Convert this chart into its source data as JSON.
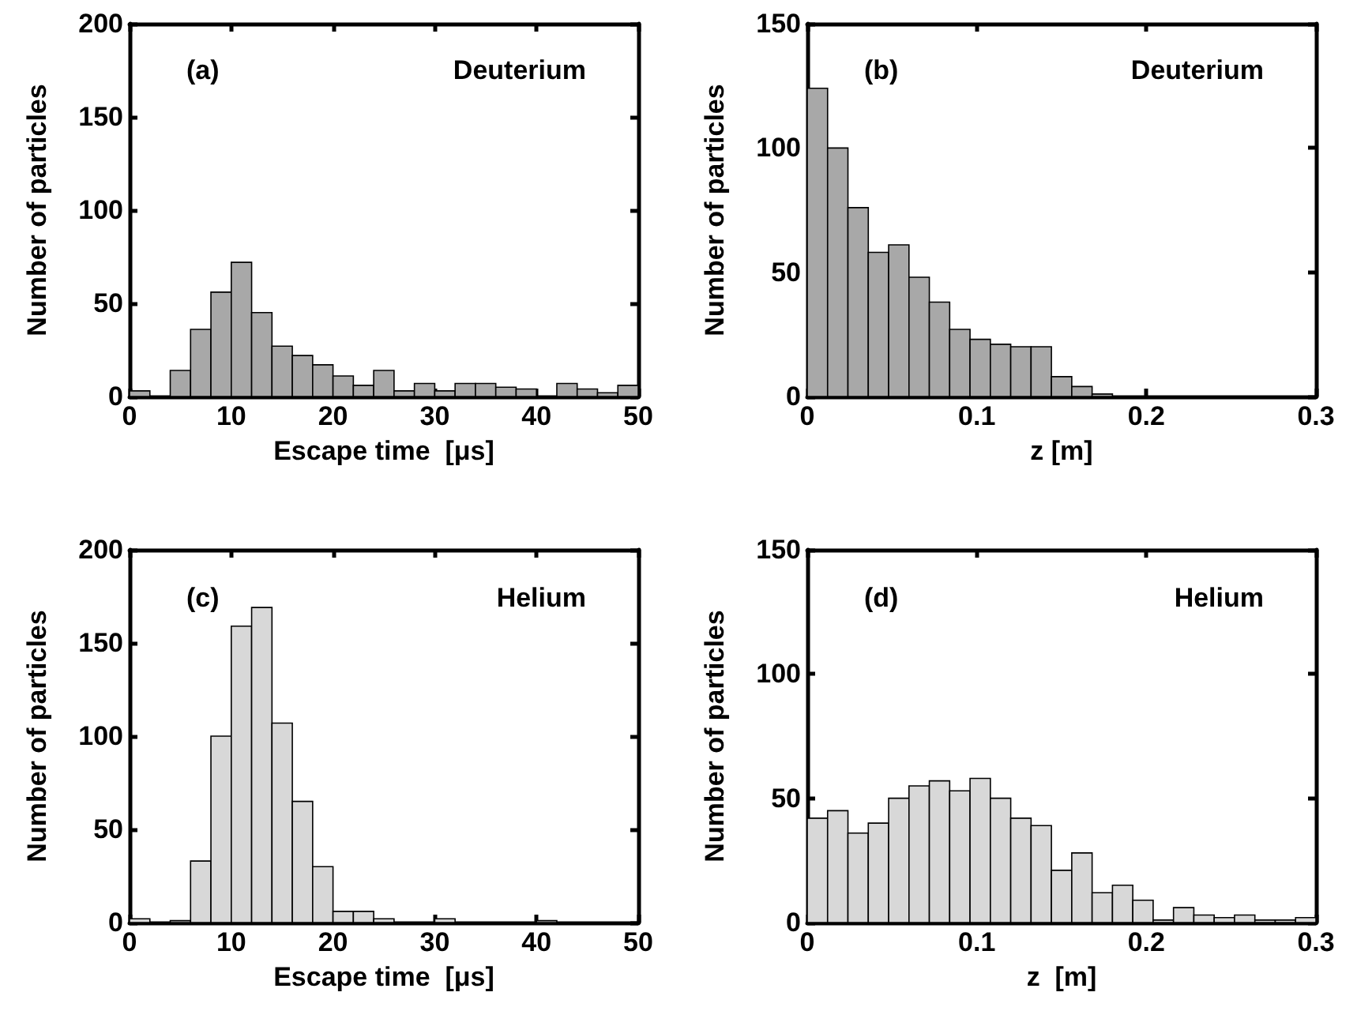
{
  "chart_data": [
    {
      "type": "histogram",
      "xlabel": "Escape time  [μs]",
      "ylabel": "Number of particles",
      "annotations": [
        "(a)",
        "Deuterium"
      ],
      "color": "#a8a8a8",
      "bins": [
        0,
        2,
        4,
        6,
        8,
        10,
        12,
        14,
        16,
        18,
        20,
        22,
        24,
        26,
        28,
        30,
        32,
        34,
        36,
        38,
        40,
        42,
        44,
        46,
        48,
        50
      ],
      "values": [
        3,
        0,
        14,
        36,
        56,
        72,
        45,
        27,
        22,
        17,
        11,
        6,
        14,
        3,
        7,
        3,
        7,
        7,
        5,
        4,
        0,
        7,
        4,
        2,
        6
      ],
      "xlim": [
        0,
        50
      ],
      "xticks": [
        0,
        10,
        20,
        30,
        40,
        50
      ],
      "ylim": [
        0,
        200
      ],
      "yticks": [
        0,
        50,
        100,
        150,
        200
      ],
      "grid": false
    },
    {
      "type": "histogram",
      "xlabel": "z [m]",
      "ylabel": "Number of particles",
      "annotations": [
        "(b)",
        "Deuterium"
      ],
      "color": "#a8a8a8",
      "bins": [
        0,
        0.012,
        0.024,
        0.036,
        0.048,
        0.06,
        0.072,
        0.084,
        0.096,
        0.108,
        0.12,
        0.132,
        0.144,
        0.156,
        0.168,
        0.18,
        0.192,
        0.204,
        0.216,
        0.228,
        0.24,
        0.252,
        0.264,
        0.276,
        0.288,
        0.3
      ],
      "values": [
        124,
        100,
        76,
        58,
        61,
        48,
        38,
        27,
        23,
        21,
        20,
        20,
        8,
        4,
        1,
        0,
        0,
        0,
        0,
        0,
        0,
        0,
        0,
        0,
        0
      ],
      "xlim": [
        0,
        0.3
      ],
      "xticks": [
        0,
        0.1,
        0.2,
        0.3
      ],
      "ylim": [
        0,
        150
      ],
      "yticks": [
        0,
        50,
        100,
        150
      ],
      "grid": false
    },
    {
      "type": "histogram",
      "xlabel": "Escape time  [μs]",
      "ylabel": "Number of particles",
      "annotations": [
        "(c)",
        "Helium"
      ],
      "color": "#d8d8d8",
      "bins": [
        0,
        2,
        4,
        6,
        8,
        10,
        12,
        14,
        16,
        18,
        20,
        22,
        24,
        26,
        28,
        30,
        32,
        34,
        36,
        38,
        40,
        42,
        44,
        46,
        48,
        50
      ],
      "values": [
        2,
        0,
        1,
        33,
        100,
        159,
        169,
        107,
        65,
        30,
        6,
        6,
        2,
        0,
        0,
        2,
        0,
        0,
        0,
        0,
        1,
        0,
        0,
        0,
        0
      ],
      "xlim": [
        0,
        50
      ],
      "xticks": [
        0,
        10,
        20,
        30,
        40,
        50
      ],
      "ylim": [
        0,
        200
      ],
      "yticks": [
        0,
        50,
        100,
        150,
        200
      ],
      "grid": false
    },
    {
      "type": "histogram",
      "xlabel": "z  [m]",
      "ylabel": "Number of particles",
      "annotations": [
        "(d)",
        "Helium"
      ],
      "color": "#d8d8d8",
      "bins": [
        0,
        0.012,
        0.024,
        0.036,
        0.048,
        0.06,
        0.072,
        0.084,
        0.096,
        0.108,
        0.12,
        0.132,
        0.144,
        0.156,
        0.168,
        0.18,
        0.192,
        0.204,
        0.216,
        0.228,
        0.24,
        0.252,
        0.264,
        0.276,
        0.288,
        0.3
      ],
      "values": [
        42,
        45,
        36,
        40,
        50,
        55,
        57,
        53,
        58,
        50,
        42,
        39,
        21,
        28,
        12,
        15,
        9,
        1,
        6,
        3,
        2,
        3,
        1,
        1,
        2
      ],
      "xlim": [
        0,
        0.3
      ],
      "xticks": [
        0,
        0.1,
        0.2,
        0.3
      ],
      "ylim": [
        0,
        150
      ],
      "yticks": [
        0,
        50,
        100,
        150
      ],
      "grid": false
    }
  ]
}
